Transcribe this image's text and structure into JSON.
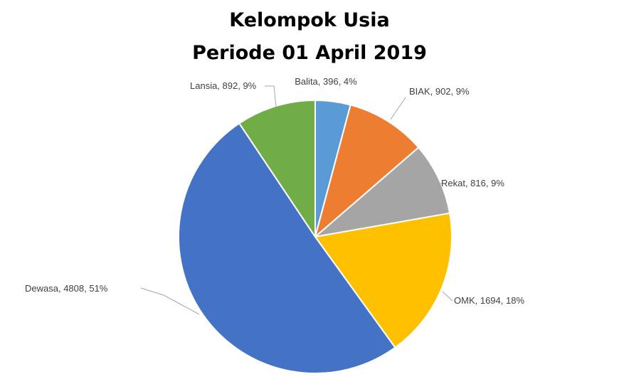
{
  "chart_data": {
    "type": "pie",
    "title": "Kelompok Usia",
    "subtitle": "Periode 01 April 2019",
    "slices": [
      {
        "name": "Balita",
        "value": 396,
        "percent": "4%",
        "color": "#5B9BD5"
      },
      {
        "name": "BIAK",
        "value": 902,
        "percent": "9%",
        "color": "#ED7D31"
      },
      {
        "name": "Rekat",
        "value": 816,
        "percent": "9%",
        "color": "#A5A5A5"
      },
      {
        "name": "OMK",
        "value": 1694,
        "percent": "18%",
        "color": "#FFC000"
      },
      {
        "name": "Dewasa",
        "value": 4808,
        "percent": "51%",
        "color": "#4472C4"
      },
      {
        "name": "Lansia",
        "value": 892,
        "percent": "9%",
        "color": "#70AD47"
      }
    ],
    "start_angle": "top",
    "direction": "clockwise",
    "data_labels": "outside with leader lines"
  }
}
